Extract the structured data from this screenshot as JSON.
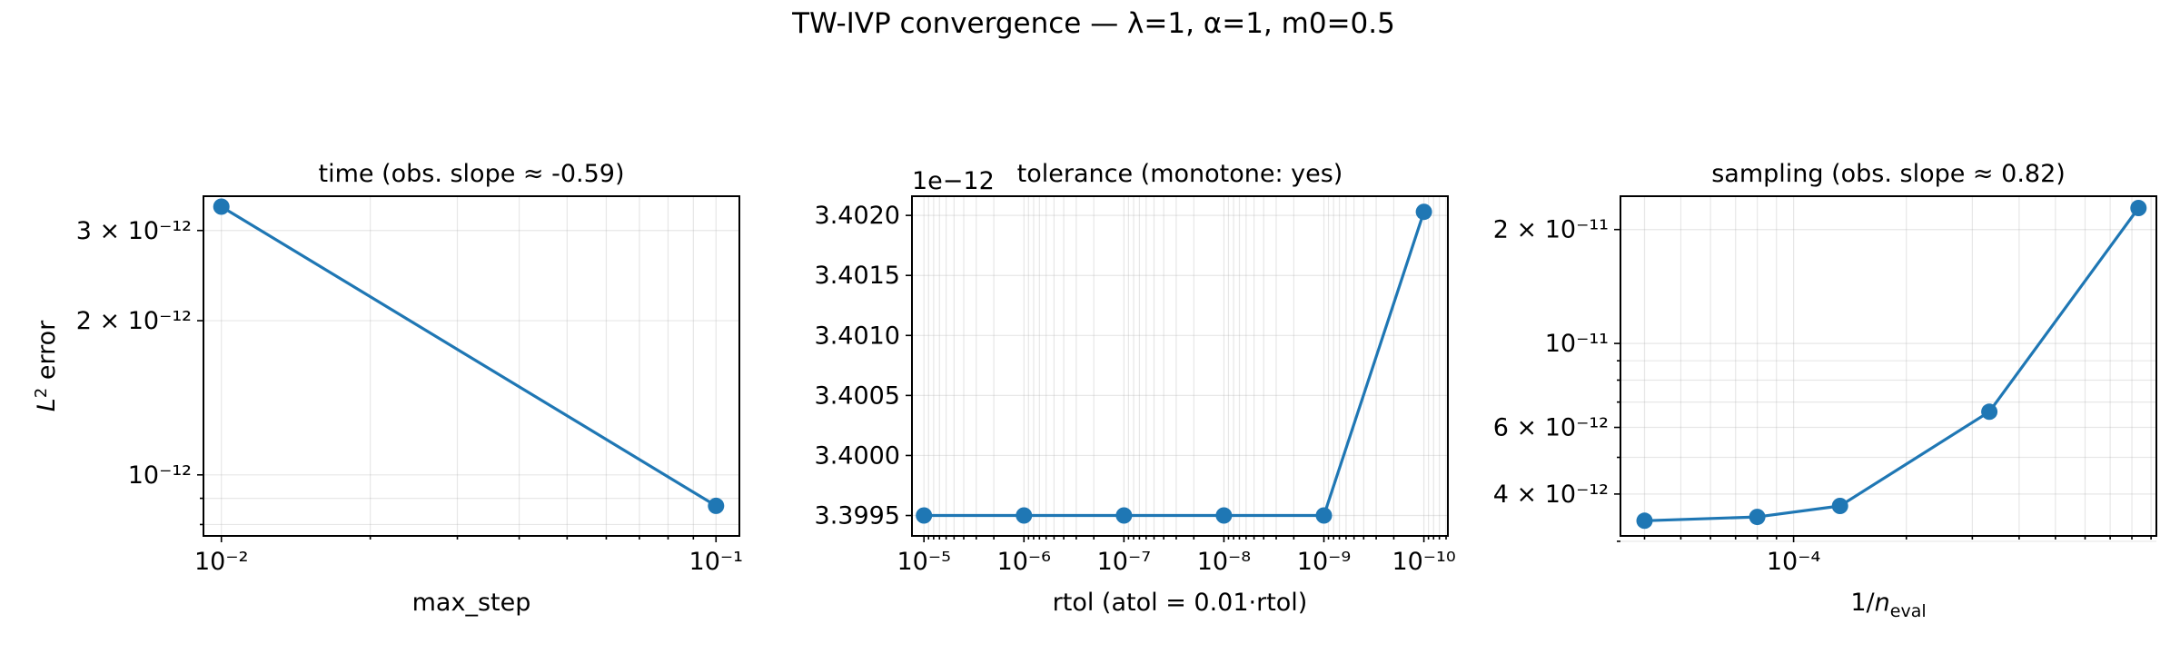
{
  "figure_title": "TW-IVP convergence — λ=1, α=1, m0=0.5",
  "colors": {
    "series": "#1f77b4"
  },
  "chart_data": [
    {
      "type": "line",
      "title": "time (obs. slope ≈ -0.59)",
      "xlabel": "max_step",
      "ylabel": "L² error",
      "x_scale": "log",
      "y_scale": "log",
      "grid": true,
      "marker": "circle",
      "x": [
        0.01,
        0.1
      ],
      "y": [
        3.34e-12,
        8.7e-13
      ],
      "x_ticks": [
        "10⁻²",
        "10⁻¹"
      ],
      "y_ticks": [
        "3 × 10⁻¹²",
        "2 × 10⁻¹²",
        "10⁻¹²"
      ]
    },
    {
      "type": "line",
      "title": "tolerance (monotone: yes)",
      "xlabel": "rtol (atol = 0.01·rtol)",
      "ylabel": "",
      "x_scale": "log",
      "x_inverted": true,
      "y_scale": "linear",
      "y_offset_label": "1e−12",
      "grid": true,
      "marker": "circle",
      "x": [
        1e-05,
        1e-06,
        1e-07,
        1e-08,
        1e-09,
        1e-10
      ],
      "y": [
        3.3995,
        3.3995,
        3.3995,
        3.3995,
        3.3995,
        3.40203
      ],
      "x_ticks": [
        "10⁻⁵",
        "10⁻⁶",
        "10⁻⁷",
        "10⁻⁸",
        "10⁻⁹",
        "10⁻¹⁰"
      ],
      "y_ticks": [
        "3.3995",
        "3.4000",
        "3.4005",
        "3.4010",
        "3.4015",
        "3.4020"
      ]
    },
    {
      "type": "line",
      "title": "sampling (obs. slope ≈ 0.82)",
      "xlabel": "1/n_eval",
      "ylabel": "",
      "x_scale": "log",
      "y_scale": "log",
      "grid": true,
      "marker": "circle",
      "x": [
        4e-05,
        8e-05,
        0.000133,
        0.000333,
        0.000833
      ],
      "y": [
        3.4e-12,
        3.48e-12,
        3.72e-12,
        6.6e-12,
        2.28e-11
      ],
      "x_ticks": [
        "10⁻⁴"
      ],
      "y_ticks": [
        "2 × 10⁻¹¹",
        "10⁻¹¹",
        "6 × 10⁻¹²",
        "4 × 10⁻¹²"
      ]
    }
  ]
}
